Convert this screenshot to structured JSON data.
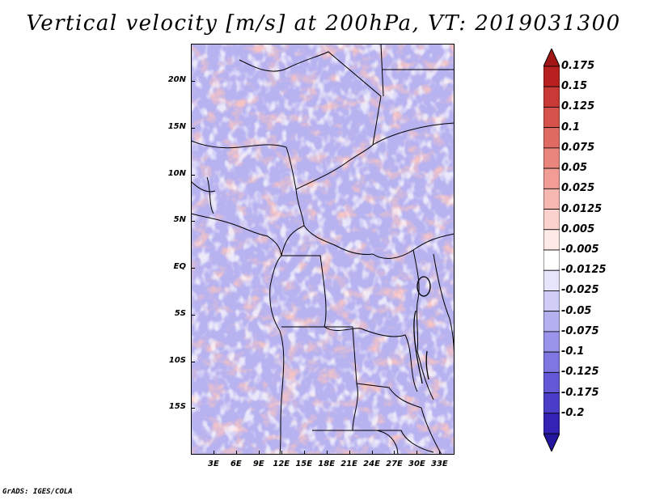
{
  "title": "Vertical velocity [m/s] at 200hPa, VT: 2019031300",
  "credit": "GrADS: IGES/COLA",
  "map": {
    "lat_range": [
      -20,
      24
    ],
    "lon_range": [
      0,
      35
    ],
    "lat_ticks": [
      {
        "value": 20,
        "label": "20N"
      },
      {
        "value": 15,
        "label": "15N"
      },
      {
        "value": 10,
        "label": "10N"
      },
      {
        "value": 5,
        "label": "5N"
      },
      {
        "value": 0,
        "label": "EQ"
      },
      {
        "value": -5,
        "label": "5S"
      },
      {
        "value": -10,
        "label": "10S"
      },
      {
        "value": -15,
        "label": "15S"
      }
    ],
    "lon_ticks": [
      {
        "value": 3,
        "label": "3E"
      },
      {
        "value": 6,
        "label": "6E"
      },
      {
        "value": 9,
        "label": "9E"
      },
      {
        "value": 12,
        "label": "12E"
      },
      {
        "value": 15,
        "label": "15E"
      },
      {
        "value": 18,
        "label": "18E"
      },
      {
        "value": 21,
        "label": "21E"
      },
      {
        "value": 24,
        "label": "24E"
      },
      {
        "value": 27,
        "label": "27E"
      },
      {
        "value": 30,
        "label": "30E"
      },
      {
        "value": 33,
        "label": "33E"
      }
    ]
  },
  "colorbar": {
    "levels": [
      {
        "label": "0.175",
        "color": "#b8201f"
      },
      {
        "label": "0.15",
        "color": "#c93a36"
      },
      {
        "label": "0.125",
        "color": "#d6534c"
      },
      {
        "label": "0.1",
        "color": "#e06b63"
      },
      {
        "label": "0.075",
        "color": "#e9857c"
      },
      {
        "label": "0.05",
        "color": "#f19c95"
      },
      {
        "label": "0.025",
        "color": "#f7b8b2"
      },
      {
        "label": "0.0125",
        "color": "#fbd2cd"
      },
      {
        "label": "0.005",
        "color": "#fde9e6"
      },
      {
        "label": "-0.005",
        "color": "#ffffff"
      },
      {
        "label": "-0.0125",
        "color": "#e6e5fb"
      },
      {
        "label": "-0.025",
        "color": "#cfcdf6"
      },
      {
        "label": "-0.05",
        "color": "#b5b1f0"
      },
      {
        "label": "-0.075",
        "color": "#9a94ea"
      },
      {
        "label": "-0.1",
        "color": "#7e77e2"
      },
      {
        "label": "-0.125",
        "color": "#6359d7"
      },
      {
        "label": "-0.175",
        "color": "#4a3dc8"
      },
      {
        "label": "-0.2",
        "color": "#3322b4"
      }
    ],
    "top_color": "#a31616",
    "bottom_color": "#23159e"
  }
}
